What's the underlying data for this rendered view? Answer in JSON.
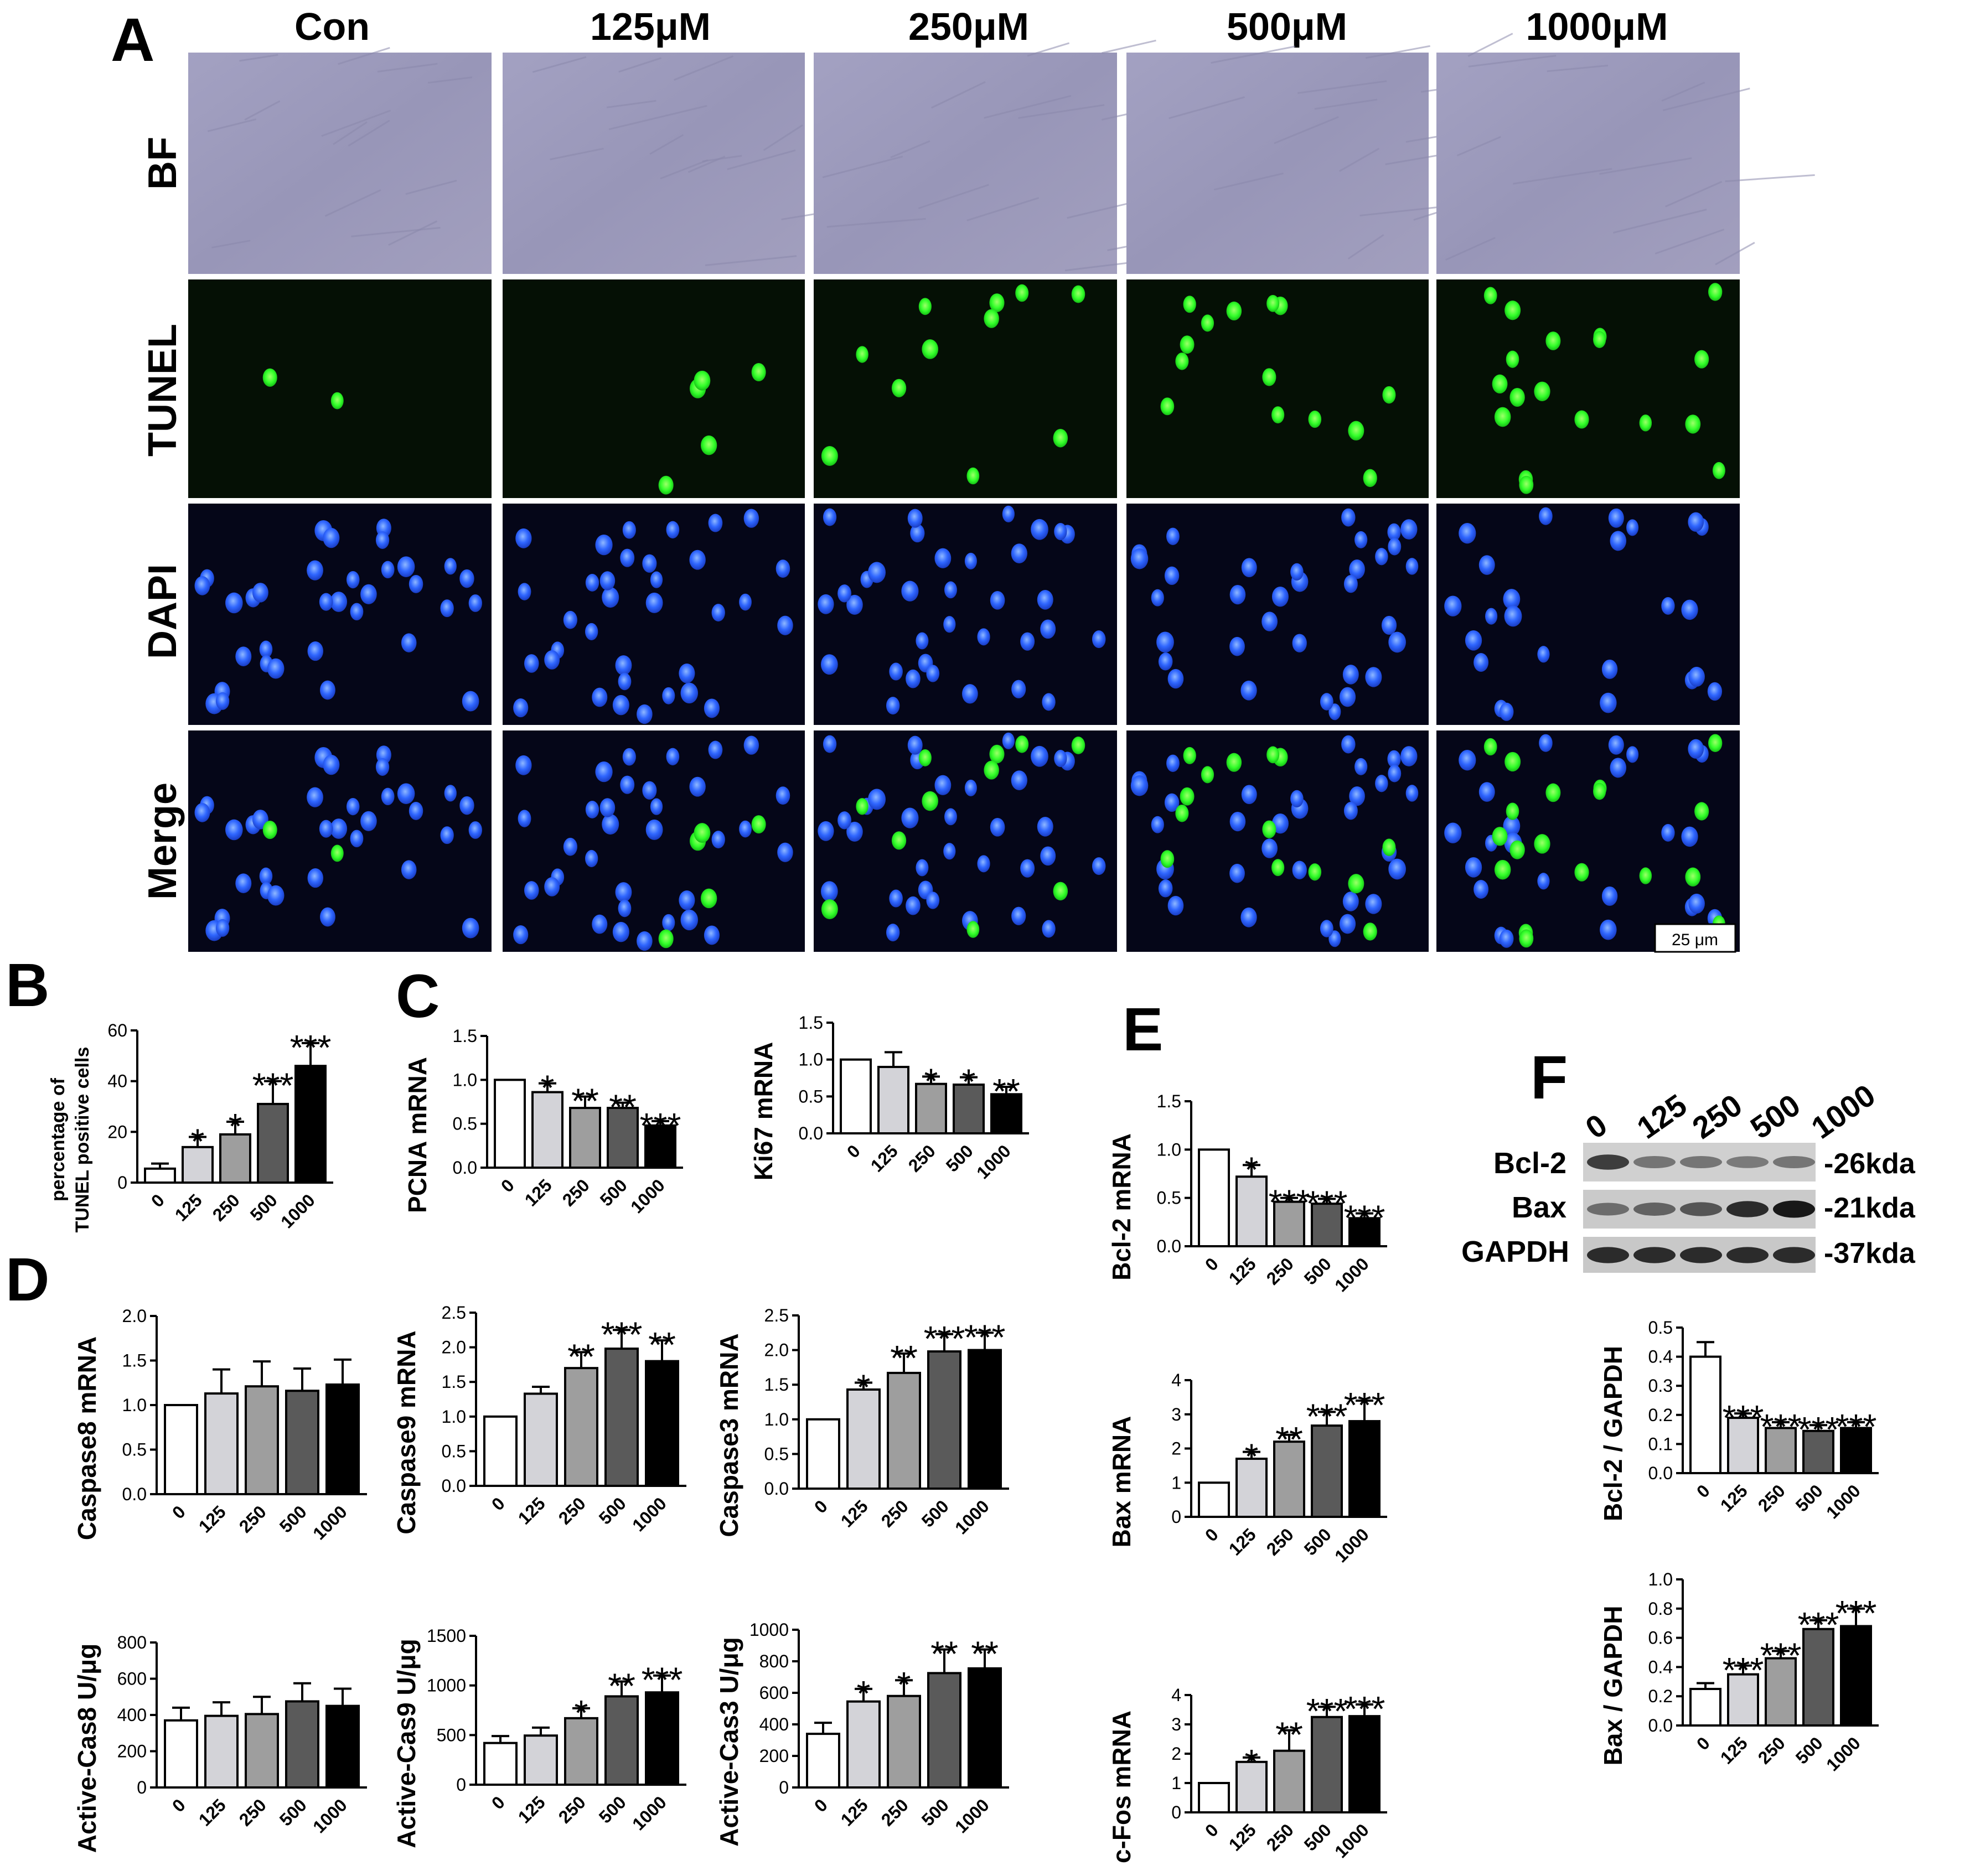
{
  "panel_letters": [
    "A",
    "B",
    "C",
    "D",
    "E",
    "F"
  ],
  "panel_a": {
    "columns": [
      "Con",
      "125μM",
      "250μM",
      "500μM",
      "1000μM"
    ],
    "rows": [
      "BF",
      "TUNEL",
      "DAPI",
      "Merge"
    ],
    "scale_bar": "25 μm"
  },
  "western_blot": {
    "lane_labels": [
      "0",
      "125",
      "250",
      "500",
      "1000"
    ],
    "proteins": [
      {
        "name": "Bcl-2",
        "size": "-26kda",
        "intensity": [
          0.75,
          0.45,
          0.45,
          0.42,
          0.45
        ]
      },
      {
        "name": "Bax",
        "size": "-21kda",
        "intensity": [
          0.5,
          0.55,
          0.62,
          0.85,
          0.95
        ]
      },
      {
        "name": "GAPDH",
        "size": "-37kda",
        "intensity": [
          0.85,
          0.85,
          0.85,
          0.85,
          0.85
        ]
      }
    ]
  },
  "colors": {
    "bar_fills": [
      "#ffffff",
      "#d3d3d8",
      "#9e9e9e",
      "#5a5a5a",
      "#000000"
    ],
    "tunel": "#33ff33",
    "dapi": "#2f66ff",
    "bf": "#9a98ba"
  },
  "chart_data": [
    {
      "id": "tunel",
      "type": "bar",
      "categories": [
        "0",
        "125",
        "250",
        "500",
        "1000"
      ],
      "values": [
        5.5,
        14,
        19,
        31,
        46
      ],
      "errors": [
        2,
        4,
        5,
        9,
        9
      ],
      "ylabel": "percentage of\nTUNEL positive cells",
      "ylim": [
        0,
        60
      ],
      "ticks": [
        "0",
        "20",
        "40",
        "60"
      ],
      "sig": [
        "",
        "*",
        "*",
        "***",
        "***"
      ]
    },
    {
      "id": "pcna",
      "type": "bar",
      "categories": [
        "0",
        "125",
        "250",
        "500",
        "1000"
      ],
      "values": [
        1.0,
        0.86,
        0.68,
        0.68,
        0.48
      ],
      "errors": [
        0,
        0.1,
        0.13,
        0.06,
        0.05
      ],
      "ylabel": "PCNA mRNA",
      "ylim": [
        0,
        1.5
      ],
      "ticks": [
        "0.0",
        "0.5",
        "1.0",
        "1.5"
      ],
      "sig": [
        "",
        "*",
        "**",
        "**",
        "***"
      ]
    },
    {
      "id": "ki67",
      "type": "bar",
      "categories": [
        "0",
        "125",
        "250",
        "500",
        "1000"
      ],
      "values": [
        1.0,
        0.9,
        0.67,
        0.66,
        0.53
      ],
      "errors": [
        0,
        0.2,
        0.1,
        0.1,
        0.1
      ],
      "ylabel": "Ki67 mRNA",
      "ylim": [
        0,
        1.5
      ],
      "ticks": [
        "0.0",
        "0.5",
        "1.0",
        "1.5"
      ],
      "sig": [
        "",
        "",
        "*",
        "*",
        "**"
      ]
    },
    {
      "id": "bcl2",
      "type": "bar",
      "categories": [
        "0",
        "125",
        "250",
        "500",
        "1000"
      ],
      "values": [
        1.0,
        0.72,
        0.46,
        0.44,
        0.29
      ],
      "errors": [
        0,
        0.12,
        0.04,
        0.05,
        0.05
      ],
      "ylabel": "Bcl-2 mRNA",
      "ylim": [
        0,
        1.5
      ],
      "ticks": [
        "0.0",
        "0.5",
        "1.0",
        "1.5"
      ],
      "sig": [
        "",
        "*",
        "***",
        "***",
        "***"
      ]
    },
    {
      "id": "casp8",
      "type": "bar",
      "categories": [
        "0",
        "125",
        "250",
        "500",
        "1000"
      ],
      "values": [
        1.0,
        1.13,
        1.21,
        1.16,
        1.23
      ],
      "errors": [
        0,
        0.27,
        0.28,
        0.25,
        0.28
      ],
      "ylabel": "Caspase8 mRNA",
      "ylim": [
        0,
        2.0
      ],
      "ticks": [
        "0.0",
        "0.5",
        "1.0",
        "1.5",
        "2.0"
      ],
      "sig": [
        "",
        "",
        "",
        "",
        ""
      ]
    },
    {
      "id": "casp9",
      "type": "bar",
      "categories": [
        "0",
        "125",
        "250",
        "500",
        "1000"
      ],
      "values": [
        1.0,
        1.33,
        1.7,
        1.98,
        1.8
      ],
      "errors": [
        0,
        0.1,
        0.23,
        0.27,
        0.3
      ],
      "ylabel": "Caspase9 mRNA",
      "ylim": [
        0,
        2.5
      ],
      "ticks": [
        "0.0",
        "0.5",
        "1.0",
        "1.5",
        "2.0",
        "2.5"
      ],
      "sig": [
        "",
        "",
        "**",
        "***",
        "**"
      ]
    },
    {
      "id": "casp3",
      "type": "bar",
      "categories": [
        "0",
        "125",
        "250",
        "500",
        "1000"
      ],
      "values": [
        1.0,
        1.43,
        1.67,
        1.98,
        2.0
      ],
      "errors": [
        0,
        0.1,
        0.28,
        0.25,
        0.25
      ],
      "ylabel": "Caspase3 mRNA",
      "ylim": [
        0,
        2.5
      ],
      "ticks": [
        "0.0",
        "0.5",
        "1.0",
        "1.5",
        "2.0",
        "2.5"
      ],
      "sig": [
        "",
        "*",
        "**",
        "***",
        "***"
      ]
    },
    {
      "id": "bax",
      "type": "bar",
      "categories": [
        "0",
        "125",
        "250",
        "500",
        "1000"
      ],
      "values": [
        1.0,
        1.7,
        2.2,
        2.67,
        2.8
      ],
      "errors": [
        0,
        0.2,
        0.2,
        0.4,
        0.6
      ],
      "ylabel": "Bax mRNA",
      "ylim": [
        0,
        4
      ],
      "ticks": [
        "0",
        "1",
        "2",
        "3",
        "4"
      ],
      "sig": [
        "",
        "*",
        "**",
        "***",
        "***"
      ]
    },
    {
      "id": "bcl2gapdh",
      "type": "bar",
      "categories": [
        "0",
        "125",
        "250",
        "500",
        "1000"
      ],
      "values": [
        0.4,
        0.19,
        0.155,
        0.145,
        0.155
      ],
      "errors": [
        0.05,
        0.015,
        0.02,
        0.02,
        0.02
      ],
      "ylabel": "Bcl-2 / GAPDH",
      "ylim": [
        0,
        0.5
      ],
      "ticks": [
        "0.0",
        "0.1",
        "0.2",
        "0.3",
        "0.4",
        "0.5"
      ],
      "sig": [
        "",
        "***",
        "***",
        "***",
        "***"
      ]
    },
    {
      "id": "acas8",
      "type": "bar",
      "categories": [
        "0",
        "125",
        "250",
        "500",
        "1000"
      ],
      "values": [
        370,
        395,
        405,
        475,
        450
      ],
      "errors": [
        70,
        75,
        95,
        100,
        95
      ],
      "ylabel": "Active-Cas8 U/μg",
      "ylim": [
        0,
        800
      ],
      "ticks": [
        "0",
        "200",
        "400",
        "600",
        "800"
      ],
      "sig": [
        "",
        "",
        "",
        "",
        ""
      ]
    },
    {
      "id": "acas9",
      "type": "bar",
      "categories": [
        "0",
        "125",
        "250",
        "500",
        "1000"
      ],
      "values": [
        420,
        495,
        670,
        890,
        930
      ],
      "errors": [
        70,
        80,
        100,
        150,
        170
      ],
      "ylabel": "Active-Cas9 U/μg",
      "ylim": [
        0,
        1500
      ],
      "ticks": [
        "0",
        "500",
        "1000",
        "1500"
      ],
      "sig": [
        "",
        "",
        "*",
        "**",
        "***"
      ]
    },
    {
      "id": "acas3",
      "type": "bar",
      "categories": [
        "0",
        "125",
        "250",
        "500",
        "1000"
      ],
      "values": [
        340,
        545,
        580,
        725,
        755
      ],
      "errors": [
        70,
        80,
        100,
        150,
        120
      ],
      "ylabel": "Active-Cas3 U/μg",
      "ylim": [
        0,
        1000
      ],
      "ticks": [
        "0",
        "200",
        "400",
        "600",
        "800",
        "1000"
      ],
      "sig": [
        "",
        "*",
        "*",
        "**",
        "**"
      ]
    },
    {
      "id": "cfos",
      "type": "bar",
      "categories": [
        "0",
        "125",
        "250",
        "500",
        "1000"
      ],
      "values": [
        1.0,
        1.72,
        2.1,
        3.25,
        3.28
      ],
      "errors": [
        0,
        0.15,
        0.7,
        0.35,
        0.4
      ],
      "ylabel": "c-Fos mRNA",
      "ylim": [
        0,
        4
      ],
      "ticks": [
        "0",
        "1",
        "2",
        "3",
        "4"
      ],
      "sig": [
        "",
        "*",
        "**",
        "***",
        "***"
      ]
    },
    {
      "id": "baxgapdh",
      "type": "bar",
      "categories": [
        "0",
        "125",
        "250",
        "500",
        "1000"
      ],
      "values": [
        0.25,
        0.35,
        0.46,
        0.66,
        0.68
      ],
      "errors": [
        0.04,
        0.06,
        0.05,
        0.06,
        0.12
      ],
      "ylabel": "Bax / GAPDH",
      "ylim": [
        0,
        1.0
      ],
      "ticks": [
        "0.0",
        "0.2",
        "0.4",
        "0.6",
        "0.8",
        "1.0"
      ],
      "sig": [
        "",
        "***",
        "***",
        "***",
        "***"
      ]
    }
  ]
}
